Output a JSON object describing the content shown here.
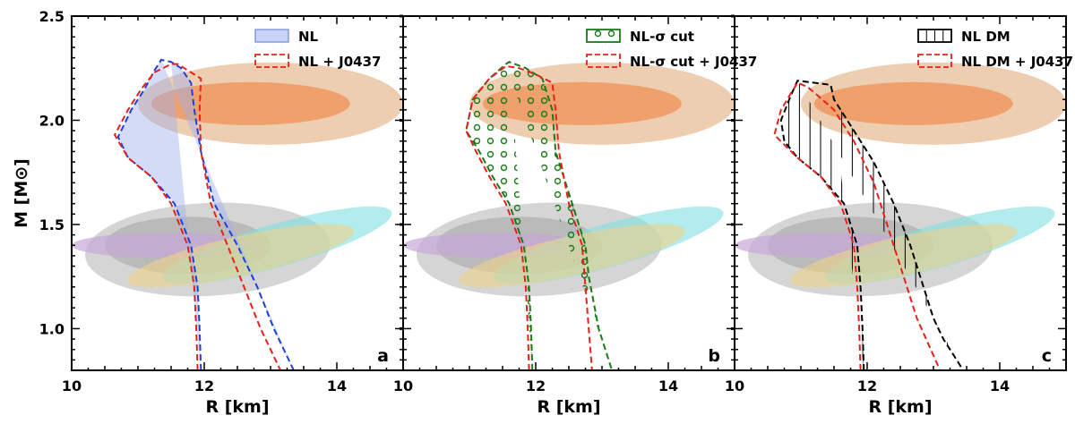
{
  "chart_data": {
    "type": "contour-band",
    "xlabel": "R [km]",
    "ylabel": "M [M⊙]",
    "xlim": [
      10,
      15
    ],
    "ylim": [
      0.8,
      2.5
    ],
    "xticks": [
      "10",
      "12",
      "14",
      "10",
      "12",
      "14",
      "10",
      "12",
      "14"
    ],
    "yticks": [
      {
        "value": 1.0,
        "label": "1.0"
      },
      {
        "value": 1.5,
        "label": "1.5"
      },
      {
        "value": 2.0,
        "label": "2.0"
      },
      {
        "value": 2.5,
        "label": "2.5"
      }
    ],
    "background_constraints": [
      {
        "name": "heavy-pulsar-outer",
        "color": "#e8bd96",
        "r_range": [
          11.0,
          15.0
        ],
        "m_center": 2.08
      },
      {
        "name": "heavy-pulsar-inner",
        "color": "#ee9860",
        "r_range": [
          11.2,
          14.2
        ],
        "m_center": 2.08
      },
      {
        "name": "grey-outer",
        "color": "#b3b3b3",
        "r_range": [
          10.2,
          13.9
        ],
        "m_center": 1.38
      },
      {
        "name": "grey-inner",
        "color": "#9a9a9a",
        "r_range": [
          10.5,
          13.0
        ],
        "m_center": 1.4
      },
      {
        "name": "violet",
        "color": "#c7a8d9",
        "r_range": [
          10.0,
          12.8
        ],
        "m_center": 1.4
      },
      {
        "name": "cyan",
        "color": "#7ee0e0",
        "r_range": [
          11.3,
          14.9
        ],
        "m_center": 1.4
      },
      {
        "name": "yellow",
        "color": "#f0d28a",
        "r_range": [
          10.8,
          14.3
        ],
        "m_center": 1.35
      }
    ],
    "panels": [
      {
        "panel_label": "a",
        "series": [
          {
            "name": "NL",
            "color": "#1f3fdd",
            "style": "dashed-filled",
            "left": [
              [
                11.95,
                0.8
              ],
              [
                11.93,
                1.0
              ],
              [
                11.9,
                1.2
              ],
              [
                11.8,
                1.4
              ],
              [
                11.55,
                1.6
              ],
              [
                11.2,
                1.73
              ],
              [
                10.85,
                1.82
              ],
              [
                10.7,
                1.92
              ],
              [
                10.9,
                2.05
              ],
              [
                11.1,
                2.15
              ],
              [
                11.25,
                2.24
              ],
              [
                11.35,
                2.29
              ]
            ],
            "right": [
              [
                11.5,
                2.28
              ],
              [
                11.65,
                2.25
              ],
              [
                11.8,
                2.18
              ],
              [
                11.85,
                2.05
              ],
              [
                11.95,
                1.85
              ],
              [
                12.15,
                1.6
              ],
              [
                12.5,
                1.4
              ],
              [
                12.8,
                1.2
              ],
              [
                13.05,
                1.0
              ],
              [
                13.35,
                0.8
              ]
            ]
          },
          {
            "name": "NL + J0437",
            "color": "#e8201c",
            "style": "dashed",
            "left": [
              [
                11.9,
                0.8
              ],
              [
                11.88,
                1.0
              ],
              [
                11.85,
                1.2
              ],
              [
                11.75,
                1.4
              ],
              [
                11.5,
                1.6
              ],
              [
                11.2,
                1.73
              ],
              [
                10.85,
                1.82
              ],
              [
                10.65,
                1.93
              ],
              [
                10.85,
                2.05
              ],
              [
                11.05,
                2.15
              ],
              [
                11.25,
                2.23
              ],
              [
                11.5,
                2.27
              ]
            ],
            "right": [
              [
                11.6,
                2.27
              ],
              [
                11.75,
                2.24
              ],
              [
                11.95,
                2.2
              ],
              [
                11.93,
                2.05
              ],
              [
                11.95,
                1.85
              ],
              [
                12.1,
                1.6
              ],
              [
                12.35,
                1.4
              ],
              [
                12.6,
                1.2
              ],
              [
                12.85,
                1.0
              ],
              [
                13.15,
                0.8
              ]
            ]
          }
        ]
      },
      {
        "panel_label": "b",
        "series": [
          {
            "name": "NL-σ cut",
            "color": "#1a7a1a",
            "style": "dashed-circles",
            "left": [
              [
                11.95,
                0.8
              ],
              [
                11.93,
                1.0
              ],
              [
                11.9,
                1.2
              ],
              [
                11.82,
                1.4
              ],
              [
                11.6,
                1.6
              ],
              [
                11.35,
                1.73
              ],
              [
                11.15,
                1.85
              ],
              [
                10.95,
                1.95
              ],
              [
                11.05,
                2.1
              ],
              [
                11.3,
                2.2
              ],
              [
                11.55,
                2.27
              ]
            ],
            "right": [
              [
                11.6,
                2.28
              ],
              [
                11.85,
                2.25
              ],
              [
                12.1,
                2.2
              ],
              [
                12.25,
                2.05
              ],
              [
                12.3,
                1.85
              ],
              [
                12.55,
                1.6
              ],
              [
                12.75,
                1.4
              ],
              [
                12.8,
                1.25
              ],
              [
                12.95,
                1.0
              ],
              [
                13.15,
                0.8
              ]
            ]
          },
          {
            "name": "NL-σ cut + J0437",
            "color": "#e8201c",
            "style": "dashed",
            "left": [
              [
                11.9,
                0.8
              ],
              [
                11.88,
                1.0
              ],
              [
                11.85,
                1.2
              ],
              [
                11.78,
                1.4
              ],
              [
                11.55,
                1.6
              ],
              [
                11.3,
                1.73
              ],
              [
                11.1,
                1.85
              ],
              [
                10.95,
                1.95
              ],
              [
                11.05,
                2.1
              ],
              [
                11.3,
                2.2
              ],
              [
                11.55,
                2.26
              ]
            ],
            "right": [
              [
                11.75,
                2.25
              ],
              [
                12.0,
                2.22
              ],
              [
                12.25,
                2.18
              ],
              [
                12.3,
                2.05
              ],
              [
                12.35,
                1.85
              ],
              [
                12.5,
                1.6
              ],
              [
                12.7,
                1.4
              ],
              [
                12.75,
                1.2
              ],
              [
                12.8,
                1.0
              ],
              [
                12.85,
                0.8
              ]
            ]
          }
        ]
      },
      {
        "panel_label": "c",
        "series": [
          {
            "name": "NL DM",
            "color": "#000000",
            "style": "dashed-vlines",
            "left": [
              [
                11.95,
                0.8
              ],
              [
                11.93,
                1.0
              ],
              [
                11.9,
                1.2
              ],
              [
                11.85,
                1.4
              ],
              [
                11.65,
                1.6
              ],
              [
                11.3,
                1.73
              ],
              [
                10.95,
                1.82
              ],
              [
                10.75,
                1.9
              ],
              [
                10.7,
                2.0
              ],
              [
                10.85,
                2.12
              ],
              [
                10.95,
                2.19
              ]
            ],
            "right": [
              [
                11.45,
                2.17
              ],
              [
                11.5,
                2.1
              ],
              [
                11.8,
                1.95
              ],
              [
                12.1,
                1.8
              ],
              [
                12.4,
                1.6
              ],
              [
                12.65,
                1.4
              ],
              [
                12.85,
                1.2
              ],
              [
                13.0,
                1.05
              ],
              [
                13.15,
                0.95
              ],
              [
                13.45,
                0.8
              ]
            ]
          },
          {
            "name": "NL DM + J0437",
            "color": "#e8201c",
            "style": "dashed",
            "left": [
              [
                11.9,
                0.8
              ],
              [
                11.88,
                1.0
              ],
              [
                11.85,
                1.2
              ],
              [
                11.8,
                1.4
              ],
              [
                11.6,
                1.6
              ],
              [
                11.3,
                1.73
              ],
              [
                10.95,
                1.82
              ],
              [
                10.6,
                1.93
              ],
              [
                10.7,
                2.05
              ],
              [
                10.85,
                2.13
              ],
              [
                10.95,
                2.18
              ]
            ],
            "right": [
              [
                11.1,
                2.16
              ],
              [
                11.25,
                2.12
              ],
              [
                11.5,
                2.05
              ],
              [
                11.8,
                1.9
              ],
              [
                12.1,
                1.7
              ],
              [
                12.3,
                1.5
              ],
              [
                12.45,
                1.35
              ],
              [
                12.6,
                1.2
              ],
              [
                12.75,
                1.05
              ],
              [
                13.1,
                0.8
              ]
            ]
          }
        ]
      }
    ]
  }
}
